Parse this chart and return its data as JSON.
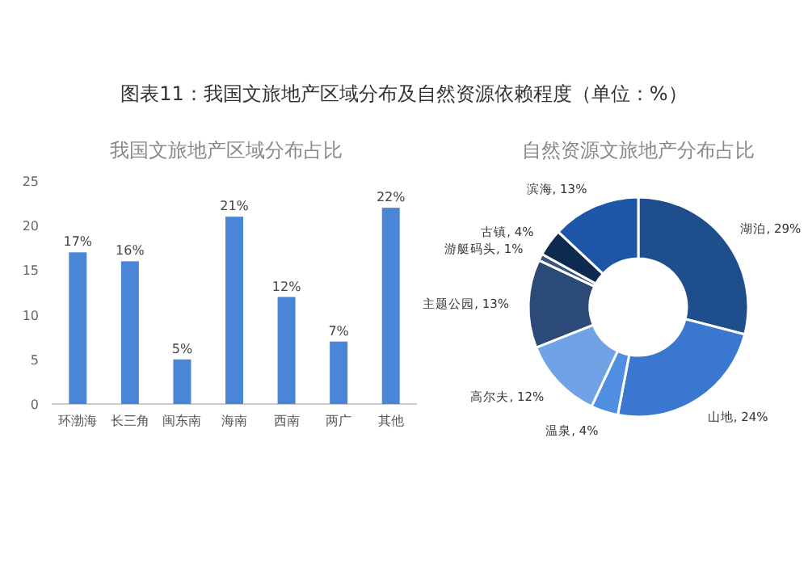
{
  "chart_data": [
    {
      "type": "bar",
      "title": "图表11：我国文旅地产区域分布及自然资源依赖程度（单位：%）",
      "subtitle": "我国文旅地产区域分布占比",
      "categories": [
        "环渤海",
        "长三角",
        "闽东南",
        "海南",
        "西南",
        "两广",
        "其他"
      ],
      "values": [
        17,
        16,
        5,
        21,
        12,
        7,
        22
      ],
      "value_labels": [
        "17%",
        "16%",
        "5%",
        "21%",
        "12%",
        "7%",
        "22%"
      ],
      "color": "#4a86d8",
      "ylim": [
        0,
        25
      ],
      "yticks": [
        0,
        5,
        10,
        15,
        20,
        25
      ],
      "grid": false
    },
    {
      "type": "donut",
      "title": "自然资源文旅地产分布占比",
      "categories": [
        "湖泊",
        "山地",
        "温泉",
        "高尔夫",
        "主题公园",
        "游艇码头",
        "古镇",
        "滨海"
      ],
      "values": [
        29,
        24,
        4,
        12,
        13,
        1,
        4,
        13
      ],
      "value_labels": [
        "29%",
        "24%",
        "4%",
        "12%",
        "13%",
        "1%",
        "4%",
        "13%"
      ],
      "colors": [
        "#1f4e8c",
        "#3a78d0",
        "#4f8ee0",
        "#6fa3e6",
        "#2c4a78",
        "#3a5580",
        "#0f2a4f",
        "#1d56a6"
      ]
    }
  ]
}
